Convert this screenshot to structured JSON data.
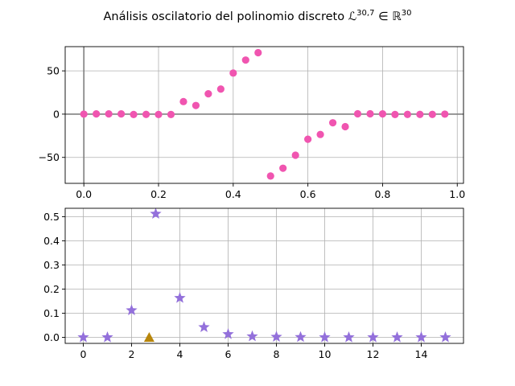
{
  "chart_data": {
    "title": "Análisis oscilatorio del polinomio discreto ℒ^{30,7} ∈ ℝ^{30}",
    "title_parts": {
      "main": "Análisis oscilatorio del polinomio discreto ",
      "symbol": "ℒ",
      "superscript": "30,7",
      "member": " ∈ ",
      "space": "ℝ",
      "space_superscript": "30"
    },
    "charts": [
      {
        "type": "scatter",
        "color": "#f055b0",
        "xlim": [
          -0.05,
          1.0167
        ],
        "ylim": [
          -80,
          78
        ],
        "grid": true,
        "reference_lines": {
          "x": 0,
          "y": 0
        },
        "x_ticks": [
          0,
          0.2,
          0.4,
          0.6,
          0.8,
          1.0
        ],
        "x_tick_labels": [
          "0.0",
          "0.2",
          "0.4",
          "0.6",
          "0.8",
          "1.0"
        ],
        "y_ticks": [
          -50,
          0,
          50
        ],
        "y_tick_labels": [
          "−50",
          "0",
          "50"
        ],
        "x": [
          0,
          0.0333,
          0.0667,
          0.1,
          0.1333,
          0.1667,
          0.2,
          0.2333,
          0.2667,
          0.3,
          0.3333,
          0.3667,
          0.4,
          0.4333,
          0.4667,
          0.5,
          0.5333,
          0.5667,
          0.6,
          0.6333,
          0.6667,
          0.7,
          0.7333,
          0.7667,
          0.8,
          0.8333,
          0.8667,
          0.9,
          0.9333,
          0.9667
        ],
        "y": [
          0,
          0.3,
          0.3,
          0.3,
          -0.4,
          -0.3,
          -0.4,
          -0.4,
          14.5,
          10,
          23.5,
          29,
          47.5,
          62.5,
          71,
          -71.5,
          -62.5,
          -47.5,
          -29,
          -23.5,
          -10,
          -14.5,
          0.4,
          0.4,
          0.3,
          -0.4,
          -0.3,
          -0.3,
          -0.3,
          0
        ]
      },
      {
        "type": "scatter",
        "xlim": [
          -0.75,
          15.75
        ],
        "ylim": [
          -0.025,
          0.535
        ],
        "grid": true,
        "x_ticks": [
          0,
          2,
          4,
          6,
          8,
          10,
          12,
          14
        ],
        "x_tick_labels": [
          "0",
          "2",
          "4",
          "6",
          "8",
          "10",
          "12",
          "14"
        ],
        "y_ticks": [
          0.0,
          0.1,
          0.2,
          0.3,
          0.4,
          0.5
        ],
        "y_tick_labels": [
          "0.0",
          "0.1",
          "0.2",
          "0.3",
          "0.4",
          "0.5"
        ],
        "series": [
          {
            "marker": "star",
            "color": "#9370db",
            "x": [
              0,
              1,
              2,
              3,
              4,
              5,
              6,
              7,
              8,
              9,
              10,
              11,
              12,
              13,
              14,
              15
            ],
            "y": [
              0,
              0,
              0.112,
              0.512,
              0.163,
              0.042,
              0.013,
              0.004,
              0.002,
              0.001,
              0,
              0,
              0,
              0,
              0,
              0
            ]
          },
          {
            "marker": "triangle",
            "color": "#b8860b",
            "x": [
              2.73
            ],
            "y": [
              0
            ]
          }
        ]
      }
    ]
  }
}
